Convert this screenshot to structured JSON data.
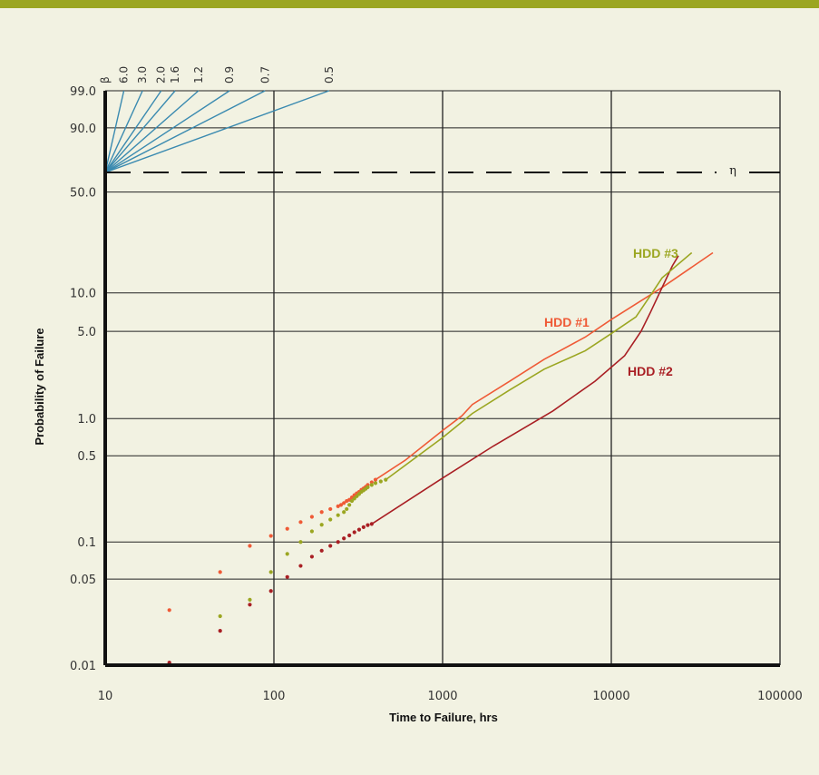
{
  "chart_data": {
    "type": "scatter",
    "title": "",
    "xlabel": "Time to Failure, hrs",
    "ylabel": "Probability of Failure",
    "x_scale": "log",
    "xlim": [
      10,
      100000
    ],
    "x_ticks": [
      10,
      100,
      1000,
      10000,
      100000
    ],
    "x_tick_labels": [
      "10",
      "100",
      "1000",
      "10000",
      "100000"
    ],
    "y_ticks": [
      0.01,
      0.05,
      0.1,
      0.5,
      1.0,
      5.0,
      10.0,
      50.0,
      90.0,
      99.0
    ],
    "y_tick_labels": [
      "0.01",
      "0.05",
      "0.1",
      "0.5",
      "1.0",
      "5.0",
      "10.0",
      "50.0",
      "90.0",
      "99.0"
    ],
    "grid": true,
    "eta_label": "η",
    "eta_probability": 63.2,
    "beta_label": "β",
    "beta_lines": [
      "6.0",
      "3.0",
      "2.0",
      "1.6",
      "1.2",
      "0.9",
      "0.7",
      "0.5"
    ],
    "series": [
      {
        "name": "HDD #1",
        "color": "#ef5a36",
        "points": [
          [
            24,
            0.028
          ],
          [
            48,
            0.057
          ],
          [
            72,
            0.093
          ],
          [
            96,
            0.112
          ],
          [
            120,
            0.128
          ],
          [
            144,
            0.145
          ],
          [
            168,
            0.16
          ],
          [
            192,
            0.175
          ],
          [
            216,
            0.185
          ],
          [
            240,
            0.195
          ],
          [
            250,
            0.2
          ],
          [
            260,
            0.207
          ],
          [
            270,
            0.215
          ],
          [
            280,
            0.22
          ],
          [
            290,
            0.23
          ],
          [
            300,
            0.24
          ],
          [
            310,
            0.248
          ],
          [
            320,
            0.255
          ],
          [
            330,
            0.265
          ],
          [
            340,
            0.272
          ],
          [
            350,
            0.28
          ],
          [
            360,
            0.29
          ],
          [
            380,
            0.305
          ],
          [
            400,
            0.32
          ]
        ],
        "line": [
          [
            400,
            0.32
          ],
          [
            600,
            0.46
          ],
          [
            1000,
            0.8
          ],
          [
            1300,
            1.05
          ],
          [
            1500,
            1.3
          ],
          [
            2500,
            2.0
          ],
          [
            4000,
            3.0
          ],
          [
            7000,
            4.5
          ],
          [
            10000,
            6.2
          ],
          [
            20000,
            11.0
          ],
          [
            40000,
            20.0
          ]
        ]
      },
      {
        "name": "HDD #2",
        "color": "#a91f24",
        "points": [
          [
            24,
            0.0105
          ],
          [
            48,
            0.019
          ],
          [
            72,
            0.031
          ],
          [
            96,
            0.04
          ],
          [
            120,
            0.052
          ],
          [
            144,
            0.064
          ],
          [
            168,
            0.076
          ],
          [
            192,
            0.085
          ],
          [
            216,
            0.093
          ],
          [
            240,
            0.1
          ],
          [
            260,
            0.107
          ],
          [
            280,
            0.113
          ],
          [
            300,
            0.12
          ],
          [
            320,
            0.126
          ],
          [
            340,
            0.132
          ],
          [
            360,
            0.137
          ],
          [
            380,
            0.14
          ]
        ],
        "line": [
          [
            380,
            0.14
          ],
          [
            1000,
            0.33
          ],
          [
            2000,
            0.6
          ],
          [
            4500,
            1.15
          ],
          [
            8000,
            2.0
          ],
          [
            12000,
            3.2
          ],
          [
            15000,
            5.0
          ],
          [
            17000,
            7.0
          ],
          [
            20000,
            11.0
          ],
          [
            23000,
            16.0
          ],
          [
            25000,
            19.0
          ]
        ]
      },
      {
        "name": "HDD #3",
        "color": "#9ba621",
        "points": [
          [
            48,
            0.025
          ],
          [
            72,
            0.034
          ],
          [
            96,
            0.057
          ],
          [
            120,
            0.08
          ],
          [
            144,
            0.1
          ],
          [
            168,
            0.122
          ],
          [
            192,
            0.138
          ],
          [
            216,
            0.152
          ],
          [
            240,
            0.165
          ],
          [
            260,
            0.175
          ],
          [
            270,
            0.185
          ],
          [
            280,
            0.2
          ],
          [
            290,
            0.215
          ],
          [
            300,
            0.225
          ],
          [
            310,
            0.235
          ],
          [
            320,
            0.245
          ],
          [
            330,
            0.255
          ],
          [
            340,
            0.262
          ],
          [
            350,
            0.27
          ],
          [
            360,
            0.278
          ],
          [
            380,
            0.29
          ],
          [
            400,
            0.3
          ],
          [
            430,
            0.31
          ],
          [
            460,
            0.32
          ]
        ],
        "line": [
          [
            460,
            0.32
          ],
          [
            1000,
            0.7
          ],
          [
            1500,
            1.1
          ],
          [
            2500,
            1.7
          ],
          [
            4000,
            2.5
          ],
          [
            7000,
            3.5
          ],
          [
            10000,
            4.8
          ],
          [
            14000,
            6.5
          ],
          [
            17000,
            9.5
          ],
          [
            20000,
            13.0
          ],
          [
            30000,
            20.0
          ]
        ]
      }
    ]
  }
}
